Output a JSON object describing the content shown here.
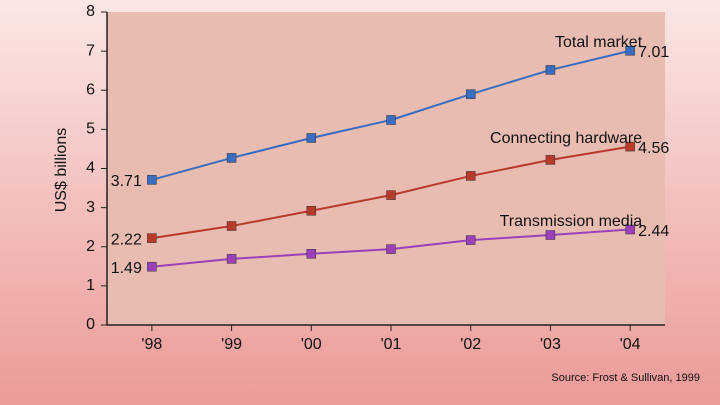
{
  "chart_data": {
    "type": "line",
    "y_label": "US$ billions",
    "source": "Source: Frost & Sullivan, 1999",
    "categories": [
      "'98",
      "'99",
      "'00",
      "'01",
      "'02",
      "'03",
      "'04"
    ],
    "series": [
      {
        "name": "Total market",
        "color": "#3a6cc0",
        "values": [
          3.71,
          4.27,
          4.78,
          5.24,
          5.9,
          6.52,
          7.01
        ]
      },
      {
        "name": "Connecting hardware",
        "color": "#b83a2c",
        "values": [
          2.22,
          2.53,
          2.92,
          3.32,
          3.81,
          4.22,
          4.56
        ]
      },
      {
        "name": "Transmission media",
        "color": "#9a40b8",
        "values": [
          1.49,
          1.69,
          1.82,
          1.94,
          2.17,
          2.3,
          2.44
        ]
      }
    ],
    "ylim": [
      0,
      8
    ],
    "yticks": [
      0,
      1,
      2,
      3,
      4,
      5,
      6,
      7,
      8
    ],
    "grid": false
  }
}
